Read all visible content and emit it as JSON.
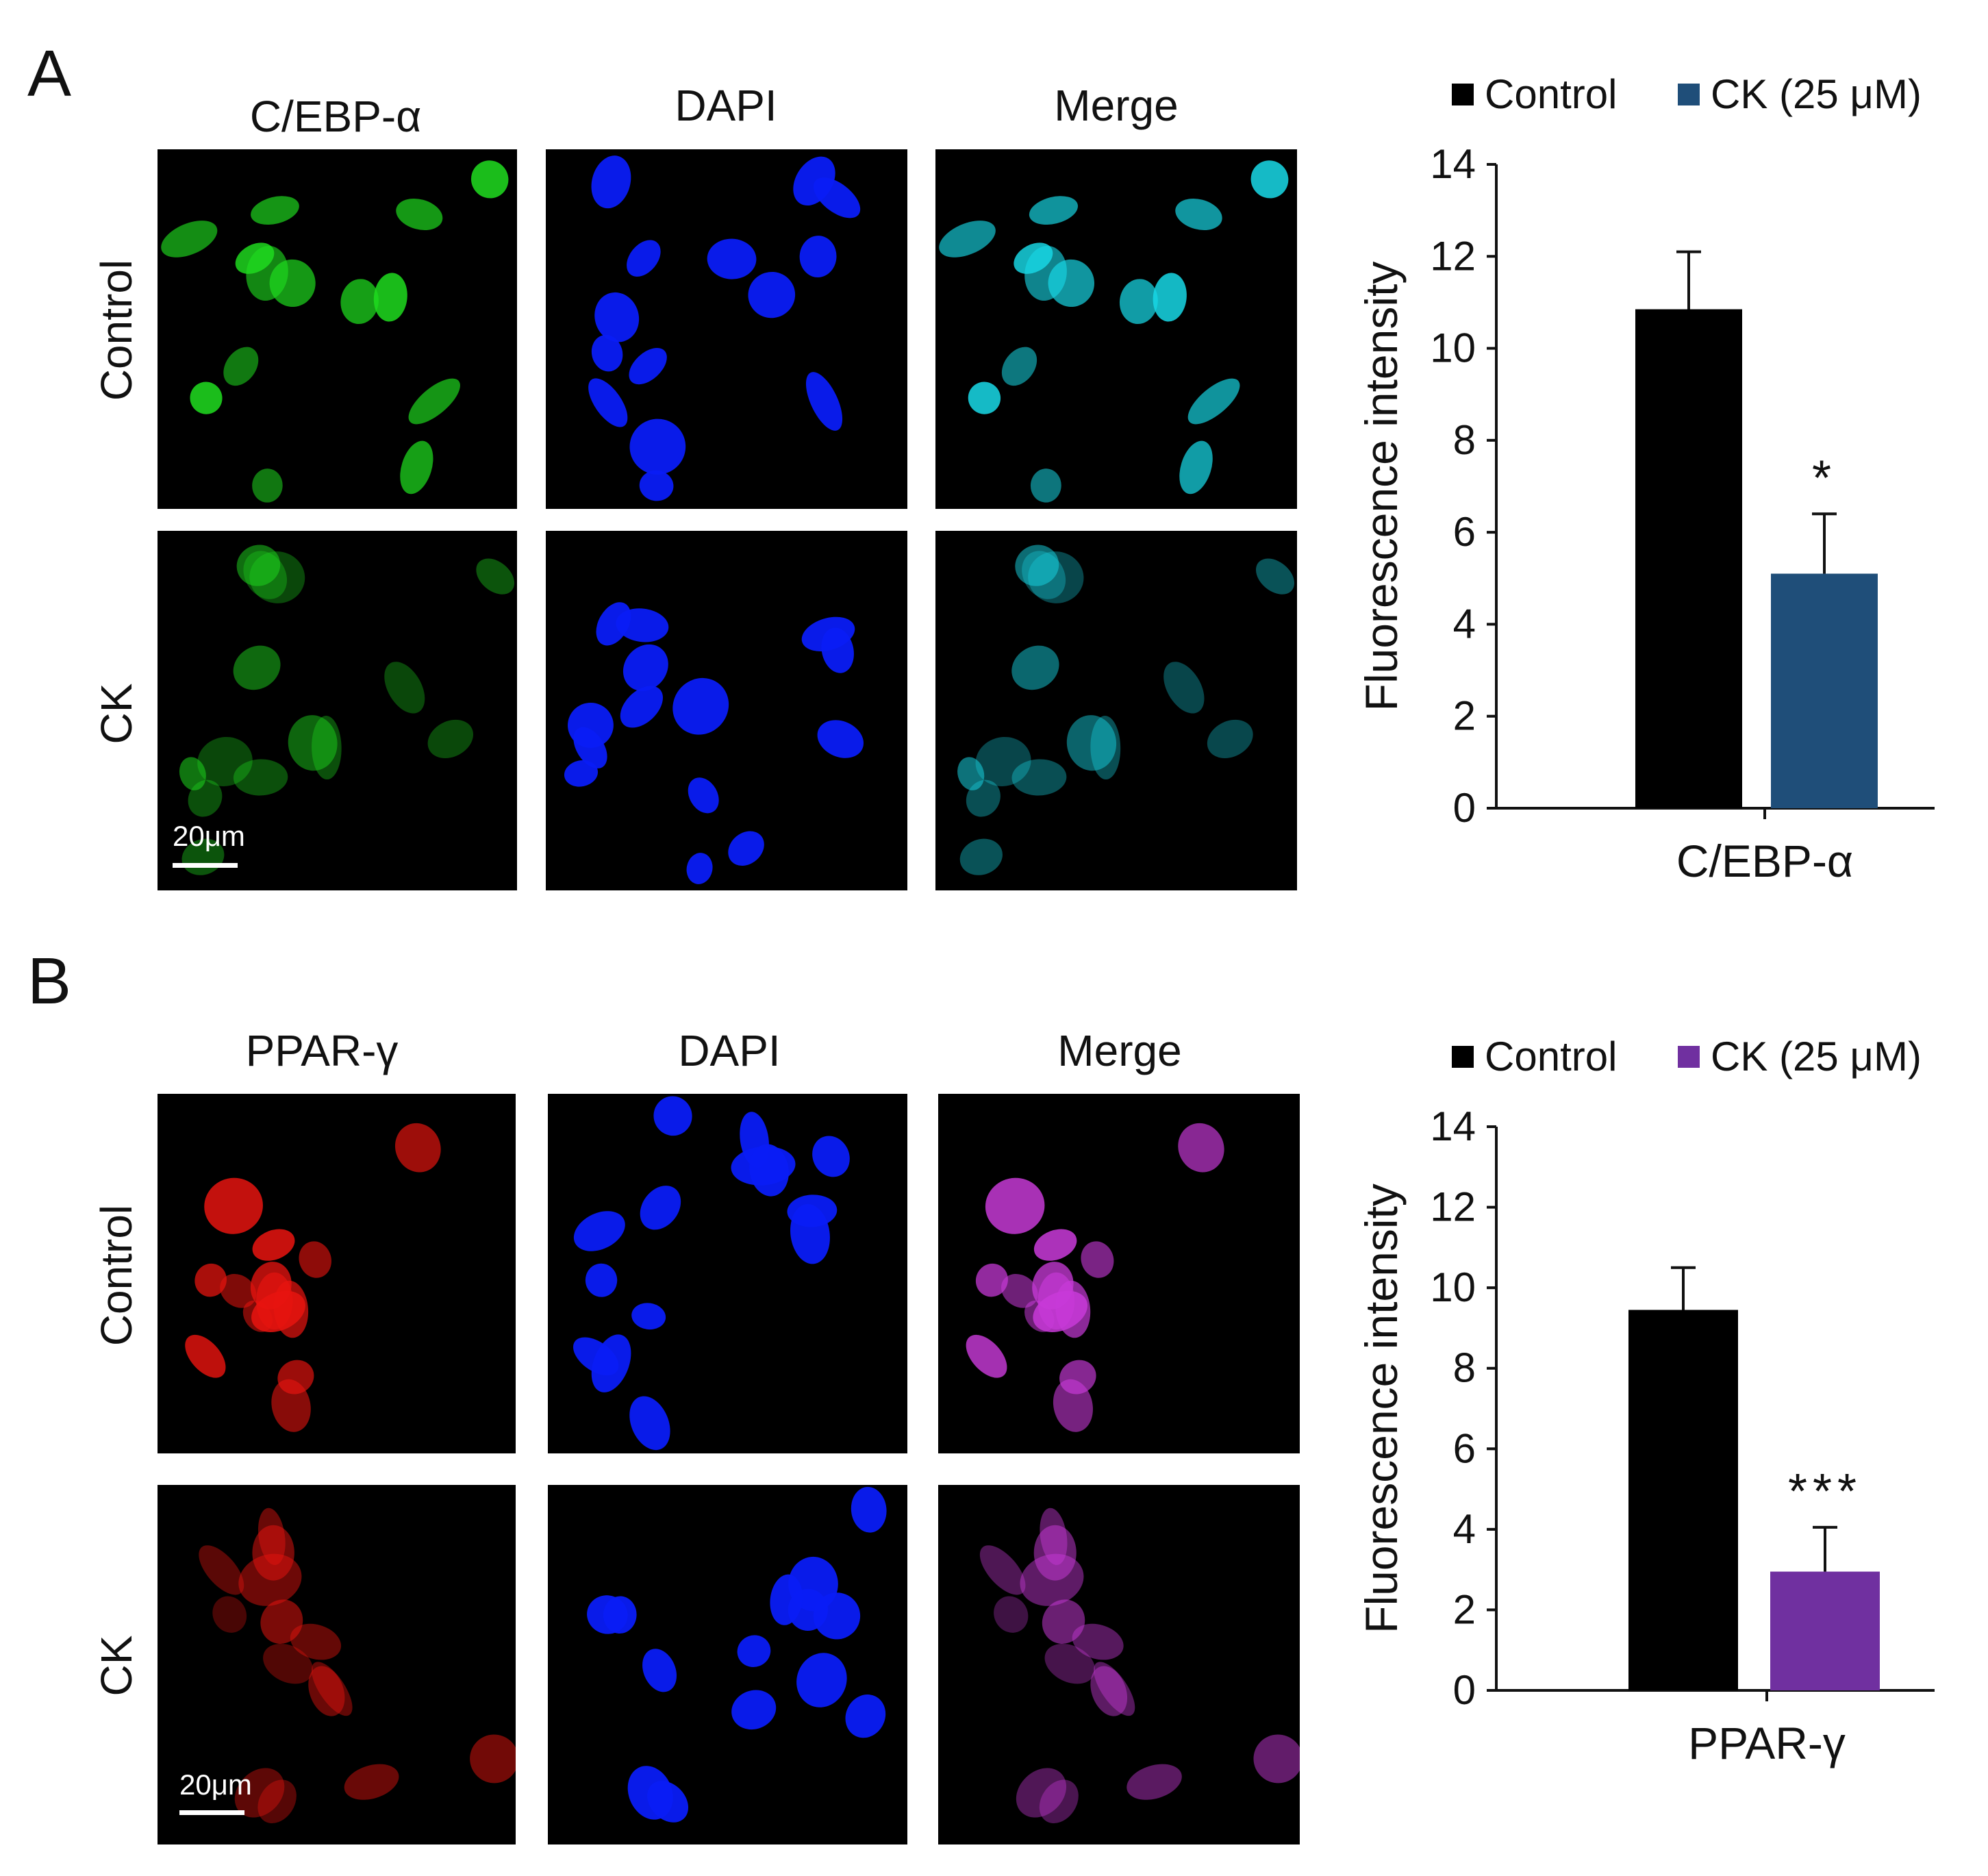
{
  "figure": {
    "panels": [
      {
        "letter": "A",
        "columns": [
          "C/EBP-α",
          "DAPI",
          "Merge"
        ],
        "rows": [
          "Control",
          "CK"
        ],
        "scale_bar": "20μm",
        "marker_color": "#1fdc1f",
        "nucleus_color": "#0a1cf5",
        "merge_color": "#18d8e6",
        "chart_data": {
          "type": "bar",
          "categories": [
            "C/EBP-α"
          ],
          "series": [
            {
              "name": "Control",
              "values": [
                10.85
              ],
              "error": [
                1.25
              ],
              "color": "#000000"
            },
            {
              "name": "CK (25 μM)",
              "values": [
                5.1
              ],
              "error": [
                1.3
              ],
              "color": "#1f4e79"
            }
          ],
          "ylabel": "Fluorescence  intensity",
          "xlabel": "C/EBP-α",
          "ylim": [
            0,
            14
          ],
          "yticks": [
            "0",
            "2",
            "4",
            "6",
            "8",
            "10",
            "12",
            "14"
          ],
          "significance": [
            {
              "series": "CK (25 μM)",
              "label": "*"
            }
          ],
          "legend_position": "top",
          "grid": false
        }
      },
      {
        "letter": "B",
        "columns": [
          "PPAR-γ",
          "DAPI",
          "Merge"
        ],
        "rows": [
          "Control",
          "CK"
        ],
        "scale_bar": "20μm",
        "marker_color": "#e8140f",
        "nucleus_color": "#0a1cf5",
        "merge_color": "#c83ad8",
        "chart_data": {
          "type": "bar",
          "categories": [
            "PPAR-γ"
          ],
          "series": [
            {
              "name": "Control",
              "values": [
                9.45
              ],
              "error": [
                1.05
              ],
              "color": "#000000"
            },
            {
              "name": "CK (25 μM)",
              "values": [
                2.95
              ],
              "error": [
                1.1
              ],
              "color": "#7030a0"
            }
          ],
          "ylabel": "Fluorescence  intensity",
          "xlabel": "PPAR-γ",
          "ylim": [
            0,
            14
          ],
          "yticks": [
            "0",
            "2",
            "4",
            "6",
            "8",
            "10",
            "12",
            "14"
          ],
          "significance": [
            {
              "series": "CK (25 μM)",
              "label": "***"
            }
          ],
          "legend_position": "top",
          "grid": false
        }
      }
    ]
  }
}
